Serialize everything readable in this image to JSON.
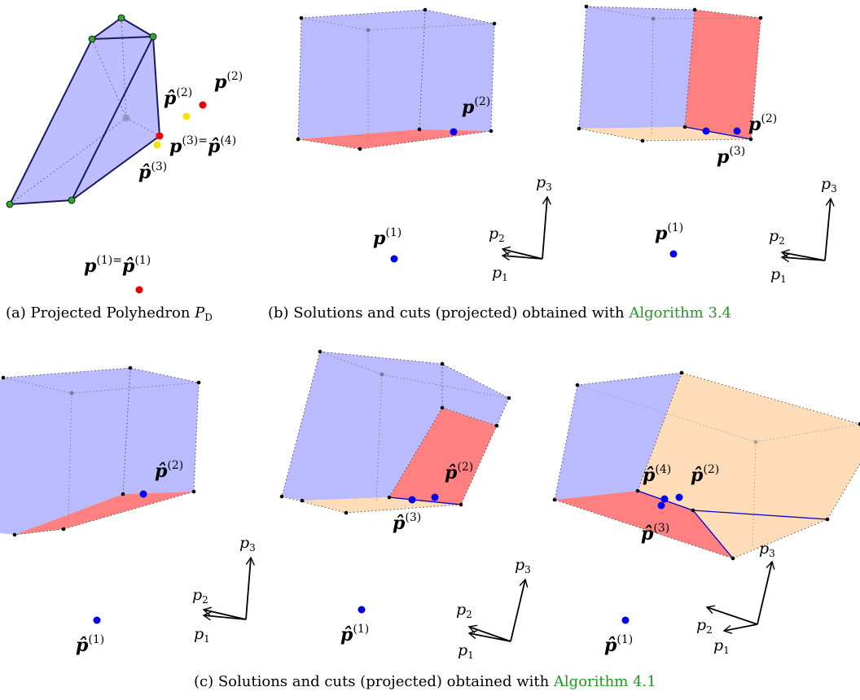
{
  "colors": {
    "face_blue": "#b3b3ff",
    "face_red": "#ff8080",
    "face_peach": "#ffdcb8",
    "edge": "#1a1a60",
    "cut_line": "#0000cc",
    "point_blue": "#0000ee",
    "point_red": "#ee0000",
    "point_yellow": "#f2e600",
    "vertex_green": "#2ea82e",
    "link_green": "#1f9a1f"
  },
  "point_names": {
    "p1_eq": "(1)=",
    "p3_eq": "(3)=",
    "s1": "(1)",
    "s2": "(2)",
    "s3": "(3)",
    "s4": "(4)"
  },
  "axes": {
    "p1": "p",
    "p2": "p",
    "p3": "p",
    "sub1": "1",
    "sub2": "2",
    "sub3": "3"
  },
  "captions": {
    "a_prefix": "(a) Projected Polyhedron ",
    "a_symbol": "P",
    "a_sub": "D",
    "b_prefix": "(b) Solutions and cuts (projected) obtained with ",
    "b_link": "Algorithm 3.4",
    "c_prefix": "(c) Solutions and cuts (projected) obtained with ",
    "c_link": "Algorithm 4.1"
  }
}
